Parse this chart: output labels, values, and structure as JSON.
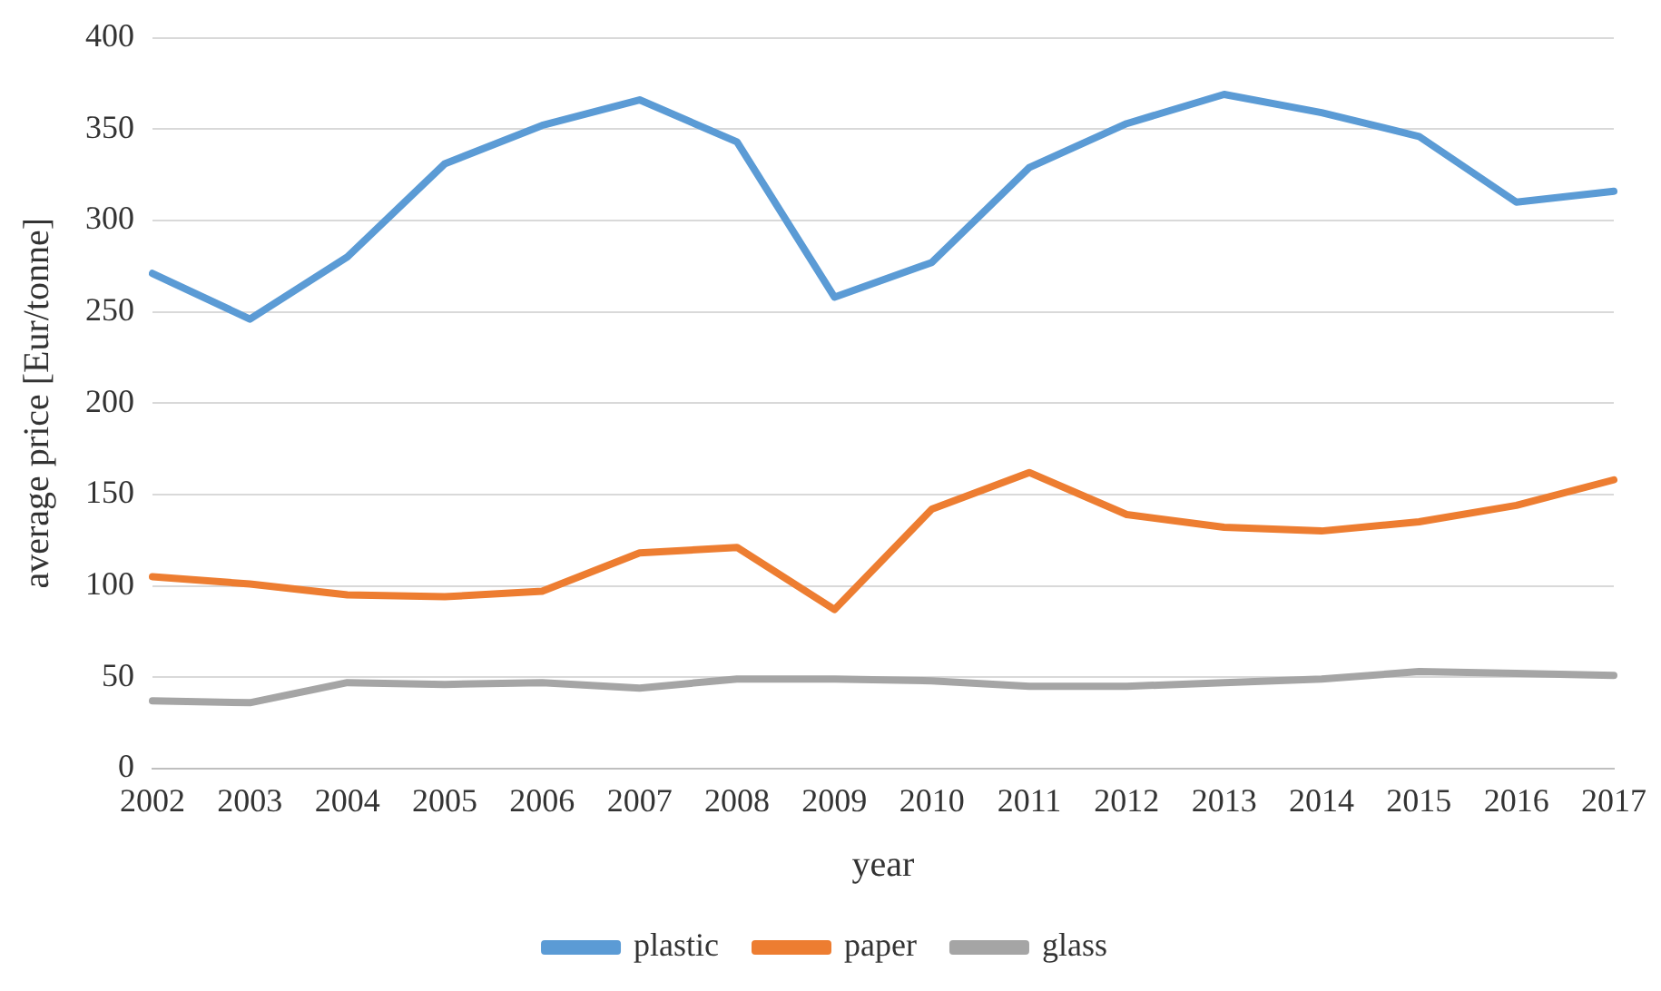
{
  "chart_data": {
    "type": "line",
    "xlabel": "year",
    "ylabel": "average price [Eur/tonne]",
    "categories": [
      "2002",
      "2003",
      "2004",
      "2005",
      "2006",
      "2007",
      "2008",
      "2009",
      "2010",
      "2011",
      "2012",
      "2013",
      "2014",
      "2015",
      "2016",
      "2017"
    ],
    "series": [
      {
        "name": "plastic",
        "color": "#5b9bd5",
        "values": [
          271,
          246,
          280,
          331,
          352,
          366,
          343,
          258,
          277,
          329,
          353,
          369,
          359,
          346,
          310,
          316
        ]
      },
      {
        "name": "paper",
        "color": "#ed7d31",
        "values": [
          105,
          101,
          95,
          94,
          97,
          118,
          121,
          87,
          142,
          162,
          139,
          132,
          130,
          135,
          144,
          158
        ]
      },
      {
        "name": "glass",
        "color": "#a5a5a5",
        "values": [
          37,
          36,
          47,
          46,
          47,
          44,
          49,
          49,
          48,
          45,
          45,
          47,
          49,
          53,
          52,
          51
        ]
      }
    ],
    "ylim": [
      0,
      400
    ],
    "yticks": [
      0,
      50,
      100,
      150,
      200,
      250,
      300,
      350,
      400
    ],
    "grid": "y",
    "legend": "bottom",
    "marker": "none",
    "line_style": "solid"
  }
}
